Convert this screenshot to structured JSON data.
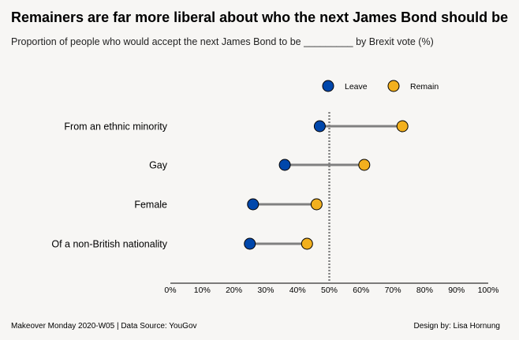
{
  "chart_data": {
    "type": "dumbbell",
    "title": "Remainers are far more liberal about who the next James Bond should be",
    "subtitle": "Proportion of people who would accept the next James Bond to be _________ by Brexit vote (%)",
    "categories": [
      "From an ethnic minority",
      "Gay",
      "Female",
      "Of a non-British nationality"
    ],
    "series": [
      {
        "name": "Leave",
        "color": "#0047ab",
        "values": [
          47,
          36,
          26,
          25
        ]
      },
      {
        "name": "Remain",
        "color": "#f2b01e",
        "values": [
          73,
          61,
          46,
          43
        ]
      }
    ],
    "xlim": [
      0,
      100
    ],
    "x_ticks": [
      "0%",
      "10%",
      "20%",
      "30%",
      "40%",
      "50%",
      "60%",
      "70%",
      "80%",
      "90%",
      "100%"
    ],
    "reference_line": 50,
    "legend_placement": "top-right",
    "grid": false,
    "connector_color": "#808080"
  },
  "footer": {
    "left": "Makeover Monday 2020-W05 | Data Source: YouGov",
    "right": "Design by: Lisa Hornung"
  }
}
